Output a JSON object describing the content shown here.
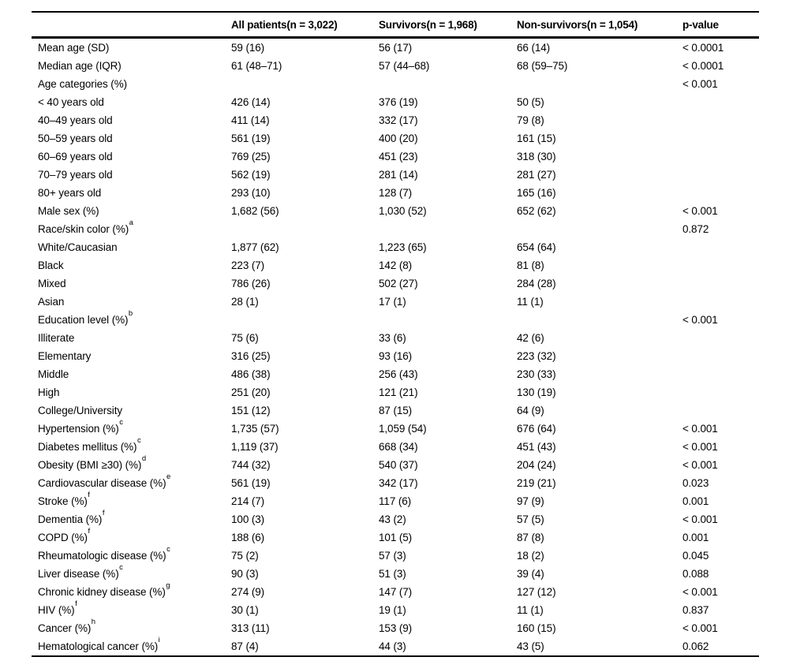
{
  "table": {
    "columns": [
      {
        "label": ""
      },
      {
        "label": "All patients(n = 3,022)"
      },
      {
        "label": "Survivors(n = 1,968)"
      },
      {
        "label": "Non-survivors(n = 1,054)"
      },
      {
        "label": "p-value"
      }
    ],
    "rows": [
      {
        "label": "Mean age (SD)",
        "sup": "",
        "all": "59 (16)",
        "surv": "56 (17)",
        "nonsurv": "66 (14)",
        "p": "< 0.0001"
      },
      {
        "label": "Median age (IQR)",
        "sup": "",
        "all": "61 (48–71)",
        "surv": "57 (44–68)",
        "nonsurv": "68 (59–75)",
        "p": "< 0.0001"
      },
      {
        "label": "Age categories (%)",
        "sup": "",
        "all": "",
        "surv": "",
        "nonsurv": "",
        "p": "< 0.001"
      },
      {
        "label": "< 40 years old",
        "sup": "",
        "all": "426 (14)",
        "surv": "376 (19)",
        "nonsurv": "50 (5)",
        "p": ""
      },
      {
        "label": "40–49 years old",
        "sup": "",
        "all": "411 (14)",
        "surv": "332 (17)",
        "nonsurv": "79 (8)",
        "p": ""
      },
      {
        "label": "50–59 years old",
        "sup": "",
        "all": "561 (19)",
        "surv": "400 (20)",
        "nonsurv": "161 (15)",
        "p": ""
      },
      {
        "label": "60–69 years old",
        "sup": "",
        "all": "769 (25)",
        "surv": "451 (23)",
        "nonsurv": "318 (30)",
        "p": ""
      },
      {
        "label": "70–79 years old",
        "sup": "",
        "all": "562 (19)",
        "surv": "281 (14)",
        "nonsurv": "281 (27)",
        "p": ""
      },
      {
        "label": "80+ years old",
        "sup": "",
        "all": "293 (10)",
        "surv": "128 (7)",
        "nonsurv": "165 (16)",
        "p": ""
      },
      {
        "label": "Male sex (%)",
        "sup": "",
        "all": "1,682 (56)",
        "surv": "1,030 (52)",
        "nonsurv": "652 (62)",
        "p": "< 0.001"
      },
      {
        "label": "Race/skin color (%)",
        "sup": "a",
        "all": "",
        "surv": "",
        "nonsurv": "",
        "p": "0.872"
      },
      {
        "label": "White/Caucasian",
        "sup": "",
        "all": "1,877 (62)",
        "surv": "1,223 (65)",
        "nonsurv": "654 (64)",
        "p": ""
      },
      {
        "label": "Black",
        "sup": "",
        "all": "223 (7)",
        "surv": "142 (8)",
        "nonsurv": "81 (8)",
        "p": ""
      },
      {
        "label": "Mixed",
        "sup": "",
        "all": "786 (26)",
        "surv": "502 (27)",
        "nonsurv": "284 (28)",
        "p": ""
      },
      {
        "label": "Asian",
        "sup": "",
        "all": "28 (1)",
        "surv": "17 (1)",
        "nonsurv": "11 (1)",
        "p": ""
      },
      {
        "label": "Education level (%)",
        "sup": "b",
        "all": "",
        "surv": "",
        "nonsurv": "",
        "p": "< 0.001"
      },
      {
        "label": "Illiterate",
        "sup": "",
        "all": "75 (6)",
        "surv": "33 (6)",
        "nonsurv": "42 (6)",
        "p": ""
      },
      {
        "label": "Elementary",
        "sup": "",
        "all": "316 (25)",
        "surv": "93 (16)",
        "nonsurv": "223 (32)",
        "p": ""
      },
      {
        "label": "Middle",
        "sup": "",
        "all": "486 (38)",
        "surv": "256 (43)",
        "nonsurv": "230 (33)",
        "p": ""
      },
      {
        "label": "High",
        "sup": "",
        "all": "251 (20)",
        "surv": "121 (21)",
        "nonsurv": "130 (19)",
        "p": ""
      },
      {
        "label": "College/University",
        "sup": "",
        "all": "151 (12)",
        "surv": "87 (15)",
        "nonsurv": "64 (9)",
        "p": ""
      },
      {
        "label": "Hypertension (%)",
        "sup": "c",
        "all": "1,735 (57)",
        "surv": "1,059 (54)",
        "nonsurv": "676 (64)",
        "p": "< 0.001"
      },
      {
        "label": "Diabetes mellitus (%)",
        "sup": "c",
        "all": "1,119 (37)",
        "surv": "668 (34)",
        "nonsurv": "451 (43)",
        "p": "< 0.001"
      },
      {
        "label": "Obesity (BMI ≥30) (%)",
        "sup": "d",
        "all": "744 (32)",
        "surv": "540 (37)",
        "nonsurv": "204 (24)",
        "p": "< 0.001"
      },
      {
        "label": "Cardiovascular disease (%)",
        "sup": "e",
        "all": "561 (19)",
        "surv": "342 (17)",
        "nonsurv": "219 (21)",
        "p": "0.023"
      },
      {
        "label": "Stroke (%)",
        "sup": "f",
        "all": "214 (7)",
        "surv": "117 (6)",
        "nonsurv": "97 (9)",
        "p": "0.001"
      },
      {
        "label": "Dementia (%)",
        "sup": "f",
        "all": "100 (3)",
        "surv": "43 (2)",
        "nonsurv": "57 (5)",
        "p": "< 0.001"
      },
      {
        "label": "COPD (%)",
        "sup": "f",
        "all": "188 (6)",
        "surv": "101 (5)",
        "nonsurv": "87 (8)",
        "p": "0.001"
      },
      {
        "label": "Rheumatologic disease (%)",
        "sup": "c",
        "all": "75 (2)",
        "surv": "57 (3)",
        "nonsurv": "18 (2)",
        "p": "0.045"
      },
      {
        "label": "Liver disease (%)",
        "sup": "c",
        "all": "90 (3)",
        "surv": "51 (3)",
        "nonsurv": "39 (4)",
        "p": "0.088"
      },
      {
        "label": "Chronic kidney disease (%)",
        "sup": "g",
        "all": "274 (9)",
        "surv": "147 (7)",
        "nonsurv": "127 (12)",
        "p": "< 0.001"
      },
      {
        "label": "HIV (%)",
        "sup": "f",
        "all": "30 (1)",
        "surv": "19 (1)",
        "nonsurv": "11 (1)",
        "p": "0.837"
      },
      {
        "label": "Cancer (%)",
        "sup": "h",
        "all": "313 (11)",
        "surv": "153 (9)",
        "nonsurv": "160 (15)",
        "p": "< 0.001"
      },
      {
        "label": "Hematological cancer (%)",
        "sup": "i",
        "all": "87 (4)",
        "surv": "44 (3)",
        "nonsurv": "43 (5)",
        "p": "0.062"
      }
    ]
  }
}
